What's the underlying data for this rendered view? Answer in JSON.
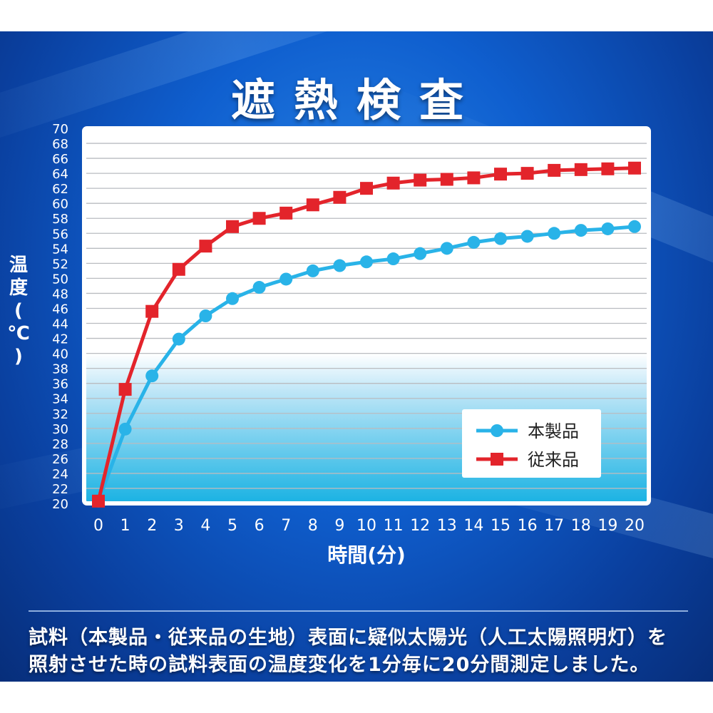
{
  "title": "遮熱検査",
  "chart_data": {
    "type": "line",
    "ylabel": "温度(℃)",
    "xlabel": "時間(分)",
    "ylim": [
      20,
      70
    ],
    "y_ticks": [
      20,
      22,
      24,
      26,
      28,
      30,
      32,
      34,
      36,
      38,
      40,
      42,
      44,
      46,
      48,
      50,
      52,
      54,
      56,
      58,
      60,
      62,
      64,
      66,
      68,
      70
    ],
    "x": [
      0,
      1,
      2,
      3,
      4,
      5,
      6,
      7,
      8,
      9,
      10,
      11,
      12,
      13,
      14,
      15,
      16,
      17,
      18,
      19,
      20
    ],
    "grid": true,
    "legend_position": "bottom-right",
    "series": [
      {
        "name": "本製品",
        "color": "#29b3e8",
        "marker": "circle",
        "values": [
          20.3,
          29.9,
          37.0,
          41.9,
          45.0,
          47.3,
          48.8,
          49.9,
          51.0,
          51.7,
          52.2,
          52.6,
          53.3,
          54.0,
          54.8,
          55.3,
          55.6,
          56.0,
          56.4,
          56.6,
          56.9
        ]
      },
      {
        "name": "従来品",
        "color": "#e3242b",
        "marker": "square",
        "values": [
          20.3,
          35.2,
          45.6,
          51.2,
          54.3,
          56.9,
          58.0,
          58.7,
          59.8,
          60.8,
          62.0,
          62.7,
          63.1,
          63.2,
          63.4,
          63.9,
          64.0,
          64.4,
          64.5,
          64.6,
          64.7
        ]
      }
    ]
  },
  "caption": {
    "line1": "試料（本製品・従来品の生地）表面に疑似太陽光（人工太陽照明灯）を",
    "line2": "照射させた時の試料表面の温度変化を1分毎に20分間測定しました。"
  }
}
